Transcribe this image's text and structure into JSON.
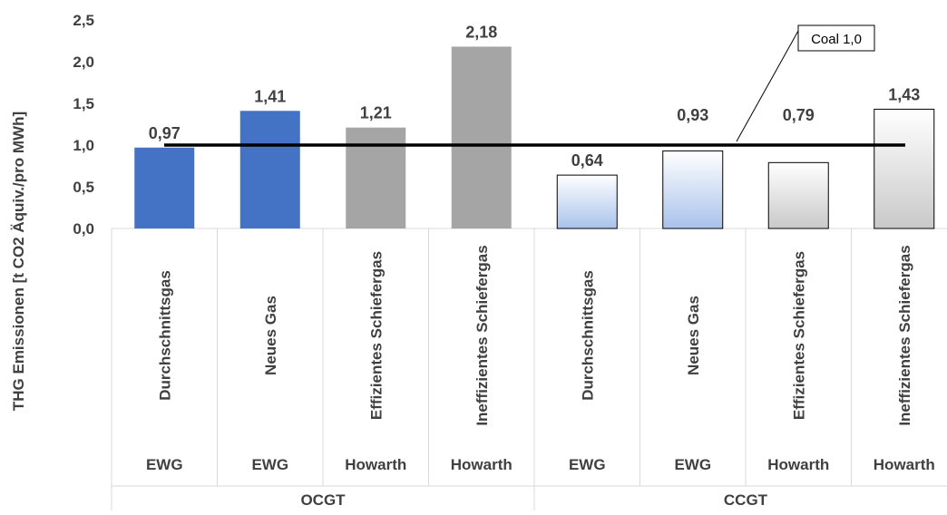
{
  "chart_data": {
    "type": "bar",
    "ylabel": "THG Emissionen [t CO2 Äquiv./pro MWh]",
    "ylim": [
      0,
      2.5
    ],
    "yticks": [
      "0,0",
      "0,5",
      "1,0",
      "1,5",
      "2,0",
      "2,5"
    ],
    "ytick_values": [
      0,
      0.5,
      1.0,
      1.5,
      2.0,
      2.5
    ],
    "grid": false,
    "categories": [
      "Durchschnittsgas",
      "Neues Gas",
      "Effizientes Schiefergas",
      "Ineffizientes Schiefergas",
      "Durchschnittsgas",
      "Neues Gas",
      "Effizientes Schiefergas",
      "Ineffizientes Schiefergas"
    ],
    "sources": [
      "EWG",
      "EWG",
      "Howarth",
      "Howarth",
      "EWG",
      "EWG",
      "Howarth",
      "Howarth"
    ],
    "groups": [
      {
        "label": "OCGT",
        "count": 4
      },
      {
        "label": "CCGT",
        "count": 4
      }
    ],
    "values": [
      0.97,
      1.41,
      1.21,
      2.18,
      0.64,
      0.93,
      0.79,
      1.43
    ],
    "value_labels": [
      "0,97",
      "1,41",
      "1,21",
      "2,18",
      "0,64",
      "0,93",
      "0,79",
      "1,43"
    ],
    "bar_styles": [
      "blue",
      "blue",
      "gray",
      "gray",
      "blue-gradient",
      "blue-gradient",
      "gray-gradient",
      "gray-gradient"
    ],
    "reference_line": {
      "label": "Coal 1,0",
      "value": 1.0
    },
    "colors": {
      "blue": "#4472C4",
      "gray": "#A5A5A5",
      "blue_gradient_top": "#FFFFFF",
      "blue_gradient_bottom": "#A9C2EB",
      "gray_gradient_top": "#FFFFFF",
      "gray_gradient_bottom": "#C9C9C9",
      "line": "#000000",
      "axis": "#D9D9D9",
      "text": "#404040"
    }
  }
}
